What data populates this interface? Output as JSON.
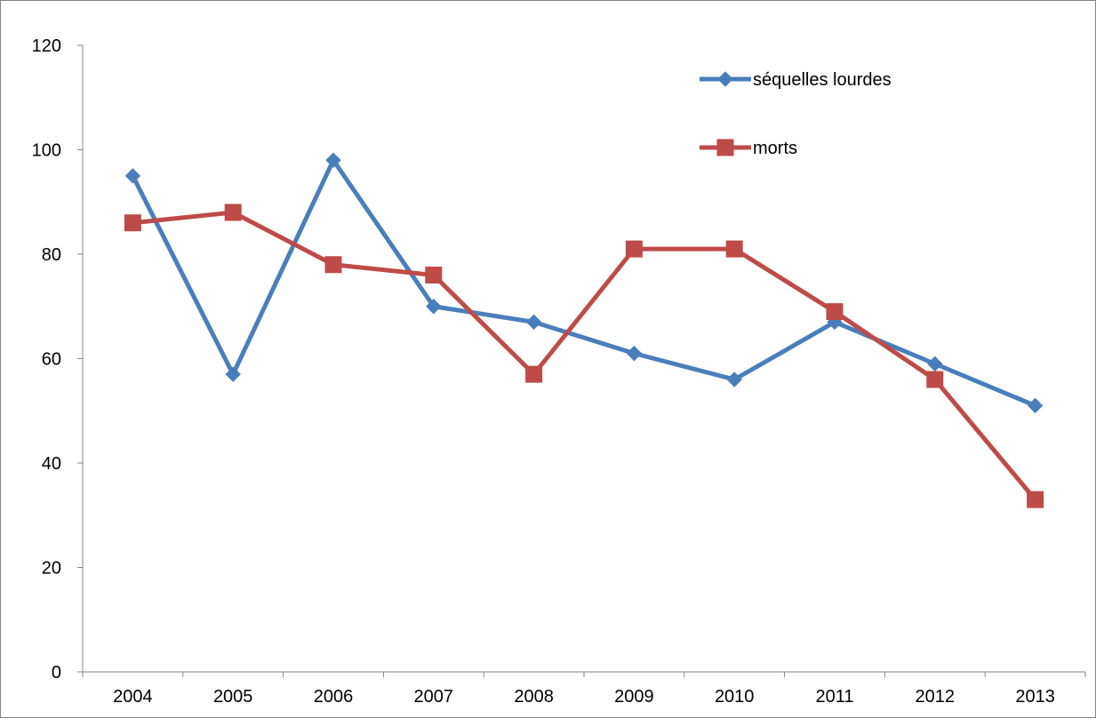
{
  "chart_data": {
    "type": "line",
    "title": "",
    "xlabel": "",
    "ylabel": "",
    "categories": [
      "2004",
      "2005",
      "2006",
      "2007",
      "2008",
      "2009",
      "2010",
      "2011",
      "2012",
      "2013"
    ],
    "ylim": [
      0,
      120
    ],
    "yticks": [
      0,
      20,
      40,
      60,
      80,
      100,
      120
    ],
    "grid": false,
    "legend_position": "top-right",
    "series": [
      {
        "name": "séquelles lourdes",
        "color": "#4A7EBB",
        "marker": "diamond",
        "values": [
          95,
          57,
          98,
          70,
          67,
          61,
          56,
          67,
          59,
          51
        ]
      },
      {
        "name": "morts",
        "color": "#BE4B48",
        "marker": "square",
        "values": [
          86,
          88,
          78,
          76,
          57,
          81,
          81,
          69,
          56,
          33
        ]
      }
    ]
  }
}
